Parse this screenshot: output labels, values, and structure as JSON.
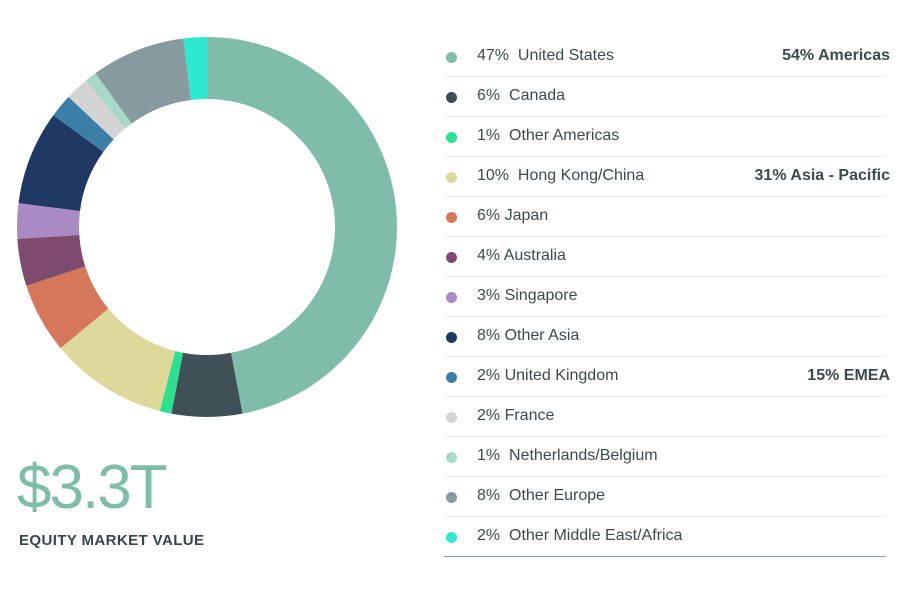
{
  "total": {
    "value": "$3.3T",
    "caption": "EQUITY MARKET VALUE"
  },
  "chart_data": {
    "type": "pie",
    "series": [
      {
        "name": "United States",
        "label": "47%  United States",
        "value": 47,
        "color": "#7fbcac",
        "region": "54% Americas"
      },
      {
        "name": "Canada",
        "label": "6%  Canada",
        "value": 6,
        "color": "#3f5156",
        "region": ""
      },
      {
        "name": "Other Americas",
        "label": "1%  Other Americas",
        "value": 1,
        "color": "#2de08f",
        "region": ""
      },
      {
        "name": "Hong Kong/China",
        "label": "10%  Hong Kong/China",
        "value": 10,
        "color": "#dcd99a",
        "region": "31% Asia - Pacific"
      },
      {
        "name": "Japan",
        "label": "6% Japan",
        "value": 6,
        "color": "#d4775a",
        "region": ""
      },
      {
        "name": "Australia",
        "label": "4% Australia",
        "value": 4,
        "color": "#7e4b6e",
        "region": ""
      },
      {
        "name": "Singapore",
        "label": "3% Singapore",
        "value": 3,
        "color": "#a98ac4",
        "region": ""
      },
      {
        "name": "Other Asia",
        "label": "8% Other Asia",
        "value": 8,
        "color": "#1f3864",
        "region": ""
      },
      {
        "name": "United Kingdom",
        "label": "2% United Kingdom",
        "value": 2,
        "color": "#3c7fa6",
        "region": "15% EMEA"
      },
      {
        "name": "France",
        "label": "2% France",
        "value": 2,
        "color": "#d4d4d4",
        "region": ""
      },
      {
        "name": "Netherlands/Belgium",
        "label": "1%  Netherlands/Belgium",
        "value": 1,
        "color": "#a7d8c8",
        "region": ""
      },
      {
        "name": "Other Europe",
        "label": "8%  Other Europe",
        "value": 8,
        "color": "#879b9e",
        "region": ""
      },
      {
        "name": "Other Middle East/Africa",
        "label": "2%  Other Middle East/Africa",
        "value": 2,
        "color": "#2ee8d2",
        "region": ""
      }
    ]
  }
}
